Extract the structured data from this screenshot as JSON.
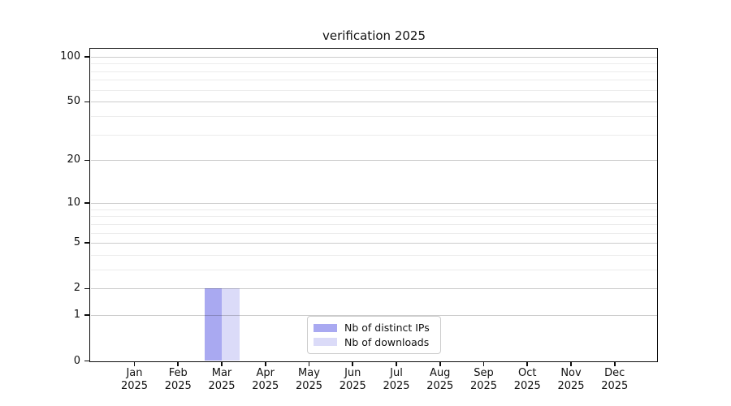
{
  "title": "verification 2025",
  "chart_data": {
    "type": "bar",
    "title": "verification 2025",
    "xlabel": "",
    "ylabel": "",
    "yscale": "log1p",
    "ylim": [
      0,
      113
    ],
    "grid": true,
    "legend_position": "inside lower center",
    "categories": [
      "Jan 2025",
      "Feb 2025",
      "Mar 2025",
      "Apr 2025",
      "May 2025",
      "Jun 2025",
      "Jul 2025",
      "Aug 2025",
      "Sep 2025",
      "Oct 2025",
      "Nov 2025",
      "Dec 2025"
    ],
    "series": [
      {
        "name": "Nb of distinct IPs",
        "color": "#a9a9f1",
        "values": [
          0,
          0,
          2,
          0,
          0,
          0,
          0,
          0,
          0,
          0,
          0,
          0
        ]
      },
      {
        "name": "Nb of downloads",
        "color": "#dbdbf8",
        "values": [
          0,
          0,
          2,
          0,
          0,
          0,
          0,
          0,
          0,
          0,
          0,
          0
        ]
      }
    ],
    "y_major_ticks": [
      {
        "value": 100,
        "label": "100"
      },
      {
        "value": 50,
        "label": "50"
      },
      {
        "value": 20,
        "label": "20"
      },
      {
        "value": 10,
        "label": "10"
      },
      {
        "value": 5,
        "label": "5"
      },
      {
        "value": 2,
        "label": "2"
      },
      {
        "value": 1,
        "label": "1"
      },
      {
        "value": 0,
        "label": "0"
      }
    ],
    "y_minor_ticks": [
      3,
      4,
      6,
      7,
      8,
      9,
      30,
      40,
      60,
      70,
      80,
      90
    ]
  },
  "colors": {
    "background": "#ffffff",
    "spine": "#0c0c0c",
    "grid_major": "#cccccc",
    "grid_minor": "#ececec",
    "legend_border": "#cccccc"
  }
}
